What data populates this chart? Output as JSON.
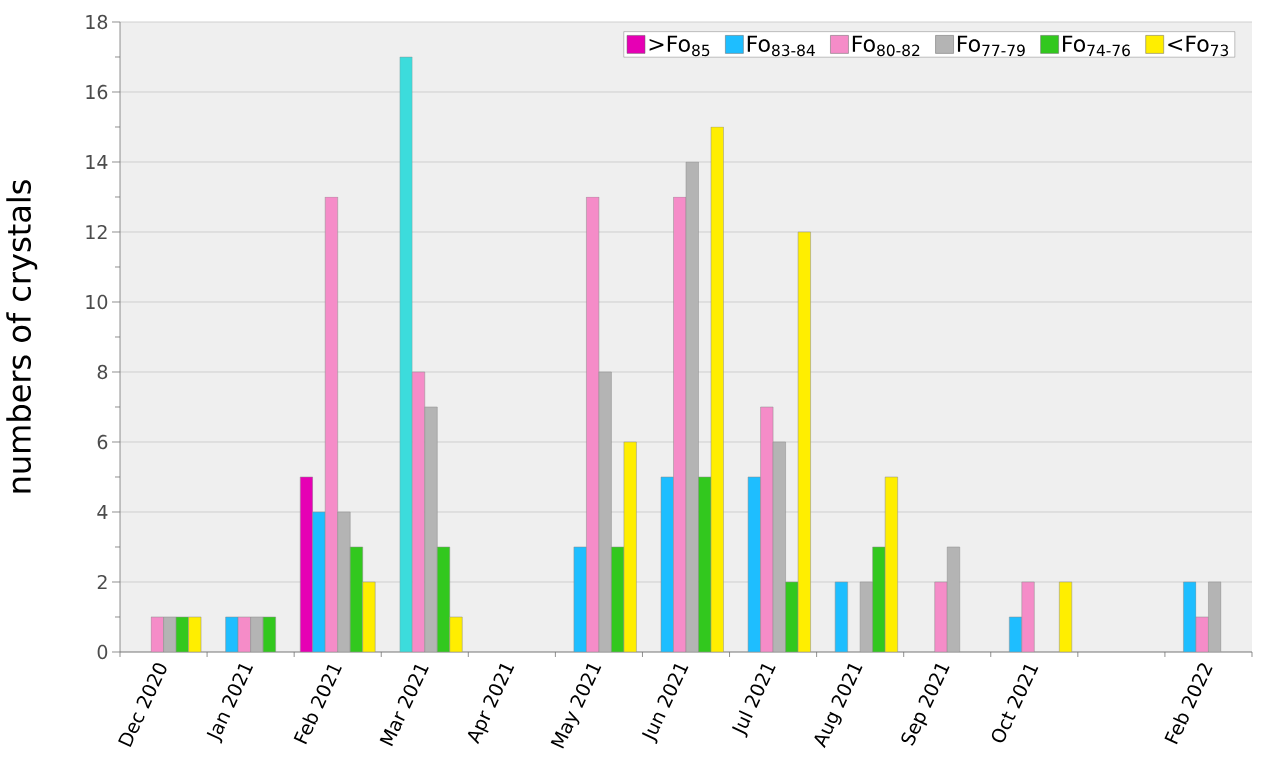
{
  "chart_data": {
    "type": "bar",
    "ylabel": "numbers of crystals",
    "categories": [
      "Dec 2020",
      "Jan 2021",
      "Feb 2021",
      "Mar 2021",
      "Apr 2021",
      "May 2021",
      "Jun 2021",
      "Jul 2021",
      "Aug 2021",
      "Sep 2021",
      "Oct 2021",
      null,
      "Feb 2022"
    ],
    "series": [
      {
        "name": ">Fo$_{85}$",
        "color": "#e600b4",
        "values": [
          null,
          null,
          5,
          null,
          null,
          null,
          null,
          null,
          null,
          null,
          null,
          null,
          null
        ]
      },
      {
        "name": "Fo$_{83-84}$",
        "color": "#1ebeff",
        "colors": [
          "#1ebeff",
          "#1ebeff",
          "#1ebeff",
          "#3cdcdc",
          "#1ebeff",
          "#1ebeff",
          "#1ebeff",
          "#1ebeff",
          "#1ebeff",
          "#1ebeff",
          "#1ebeff",
          "#1ebeff",
          "#1ebeff"
        ],
        "values": [
          null,
          1,
          4,
          17,
          null,
          3,
          5,
          5,
          2,
          null,
          1,
          null,
          2
        ]
      },
      {
        "name": "Fo$_{80-82}$",
        "color": "#f58cc8",
        "values": [
          1,
          1,
          13,
          8,
          null,
          13,
          13,
          7,
          null,
          2,
          2,
          null,
          1
        ]
      },
      {
        "name": "Fo$_{77-79}$",
        "color": "#b4b4b4",
        "values": [
          1,
          1,
          4,
          7,
          null,
          8,
          14,
          6,
          2,
          3,
          null,
          null,
          2
        ]
      },
      {
        "name": "Fo$_{74-76}$",
        "color": "#32c81e",
        "values": [
          1,
          1,
          3,
          3,
          null,
          3,
          5,
          2,
          3,
          null,
          null,
          null,
          null
        ]
      },
      {
        "name": "<Fo$_{73}$",
        "color": "#ffee00",
        "values": [
          1,
          null,
          2,
          1,
          null,
          6,
          15,
          12,
          5,
          null,
          2,
          null,
          null
        ]
      }
    ],
    "ylim": [
      0,
      18
    ],
    "yticks": [
      0,
      2,
      4,
      6,
      8,
      10,
      12,
      14,
      16,
      18
    ],
    "grid": "y",
    "legend": "top right"
  }
}
